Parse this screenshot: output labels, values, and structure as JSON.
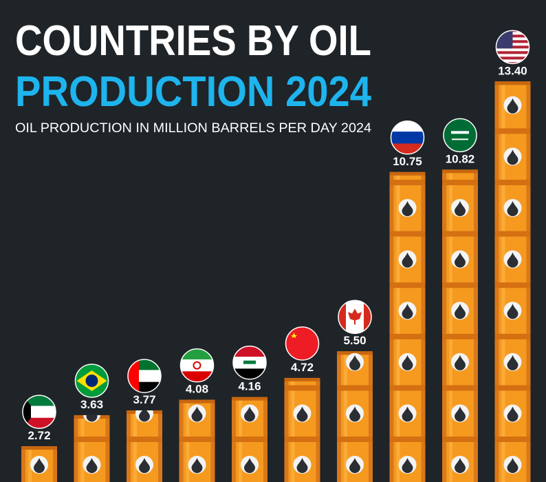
{
  "chart_data": {
    "type": "barrel-bar",
    "title": [
      "COUNTRIES BY OIL",
      "PRODUCTION 2024"
    ],
    "subtitle": "OIL PRODUCTION IN MILLION BARRELS PER DAY 2024",
    "categories": [
      null,
      null,
      null,
      null,
      null,
      null,
      null,
      null,
      null,
      null
    ],
    "values": [
      2.72,
      3.63,
      3.77,
      4.08,
      4.16,
      4.72,
      5.5,
      10.75,
      10.82,
      13.4
    ],
    "value_labels": [
      "2.72",
      "3.63",
      "3.77",
      "4.08",
      "4.16",
      "4.72",
      "5.50",
      "10.75",
      "10.82",
      "13.40"
    ],
    "color": "#f59a1f"
  }
}
